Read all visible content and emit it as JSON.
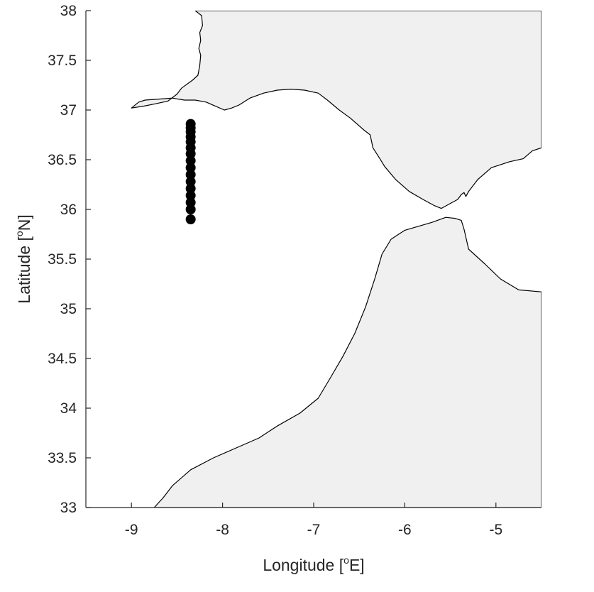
{
  "chart_data": {
    "type": "map",
    "xlabel": "Longitude [°E]",
    "ylabel": "Latitude [°N]",
    "xlim": [
      -9.5,
      -4.5
    ],
    "ylim": [
      33,
      38
    ],
    "xticks": [
      -9,
      -8,
      -7,
      -6,
      -5
    ],
    "yticks": [
      33,
      33.5,
      34,
      34.5,
      35,
      35.5,
      36,
      36.5,
      37,
      37.5,
      38
    ],
    "xtick_labels": [
      "-9",
      "-8",
      "-7",
      "-6",
      "-5"
    ],
    "ytick_labels": [
      "33",
      "33.5",
      "34",
      "34.5",
      "35",
      "35.5",
      "36",
      "36.5",
      "37",
      "37.5",
      "38"
    ],
    "land_color": "#f0f0f0",
    "station_color": "#000000",
    "stations": {
      "lon": -8.35,
      "lat": [
        35.9,
        36.0,
        36.07,
        36.14,
        36.21,
        36.28,
        36.35,
        36.42,
        36.49,
        36.56,
        36.62,
        36.68,
        36.73,
        36.78,
        36.82,
        36.86
      ]
    },
    "land": {
      "iberia": [
        [
          -8.3,
          38.0
        ],
        [
          -8.23,
          37.95
        ],
        [
          -8.22,
          37.85
        ],
        [
          -8.25,
          37.78
        ],
        [
          -8.24,
          37.7
        ],
        [
          -8.26,
          37.62
        ],
        [
          -8.24,
          37.55
        ],
        [
          -8.25,
          37.45
        ],
        [
          -8.27,
          37.35
        ],
        [
          -8.33,
          37.3
        ],
        [
          -8.45,
          37.22
        ],
        [
          -8.5,
          37.16
        ],
        [
          -8.6,
          37.09
        ],
        [
          -8.75,
          37.06
        ],
        [
          -8.86,
          37.04
        ],
        [
          -9.0,
          37.02
        ],
        [
          -8.92,
          37.08
        ],
        [
          -8.85,
          37.1
        ],
        [
          -8.7,
          37.11
        ],
        [
          -8.55,
          37.12
        ],
        [
          -8.42,
          37.1
        ],
        [
          -8.3,
          37.1
        ],
        [
          -8.18,
          37.08
        ],
        [
          -8.08,
          37.04
        ],
        [
          -7.98,
          37.0
        ],
        [
          -7.9,
          37.02
        ],
        [
          -7.82,
          37.05
        ],
        [
          -7.7,
          37.12
        ],
        [
          -7.55,
          37.17
        ],
        [
          -7.4,
          37.2
        ],
        [
          -7.25,
          37.21
        ],
        [
          -7.1,
          37.2
        ],
        [
          -6.95,
          37.17
        ],
        [
          -6.85,
          37.1
        ],
        [
          -6.72,
          37.0
        ],
        [
          -6.6,
          36.92
        ],
        [
          -6.45,
          36.8
        ],
        [
          -6.38,
          36.75
        ],
        [
          -6.35,
          36.62
        ],
        [
          -6.28,
          36.52
        ],
        [
          -6.22,
          36.43
        ],
        [
          -6.1,
          36.3
        ],
        [
          -5.95,
          36.18
        ],
        [
          -5.8,
          36.1
        ],
        [
          -5.68,
          36.04
        ],
        [
          -5.6,
          36.01
        ],
        [
          -5.52,
          36.05
        ],
        [
          -5.42,
          36.1
        ],
        [
          -5.38,
          36.15
        ],
        [
          -5.35,
          36.17
        ],
        [
          -5.33,
          36.13
        ],
        [
          -5.3,
          36.18
        ],
        [
          -5.2,
          36.3
        ],
        [
          -5.05,
          36.42
        ],
        [
          -4.85,
          36.48
        ],
        [
          -4.7,
          36.51
        ],
        [
          -4.6,
          36.59
        ],
        [
          -4.5,
          36.62
        ],
        [
          -4.5,
          38.0
        ]
      ],
      "africa": [
        [
          -8.75,
          33.0
        ],
        [
          -8.65,
          33.1
        ],
        [
          -8.55,
          33.22
        ],
        [
          -8.35,
          33.38
        ],
        [
          -8.1,
          33.5
        ],
        [
          -7.85,
          33.6
        ],
        [
          -7.6,
          33.7
        ],
        [
          -7.4,
          33.82
        ],
        [
          -7.15,
          33.95
        ],
        [
          -6.95,
          34.1
        ],
        [
          -6.82,
          34.3
        ],
        [
          -6.68,
          34.52
        ],
        [
          -6.55,
          34.75
        ],
        [
          -6.43,
          35.02
        ],
        [
          -6.33,
          35.3
        ],
        [
          -6.25,
          35.55
        ],
        [
          -6.15,
          35.7
        ],
        [
          -6.0,
          35.79
        ],
        [
          -5.85,
          35.83
        ],
        [
          -5.7,
          35.87
        ],
        [
          -5.55,
          35.92
        ],
        [
          -5.45,
          35.91
        ],
        [
          -5.38,
          35.89
        ],
        [
          -5.35,
          35.8
        ],
        [
          -5.3,
          35.6
        ],
        [
          -5.12,
          35.45
        ],
        [
          -4.95,
          35.3
        ],
        [
          -4.75,
          35.19
        ],
        [
          -4.5,
          35.17
        ],
        [
          -4.5,
          33.0
        ]
      ]
    }
  }
}
